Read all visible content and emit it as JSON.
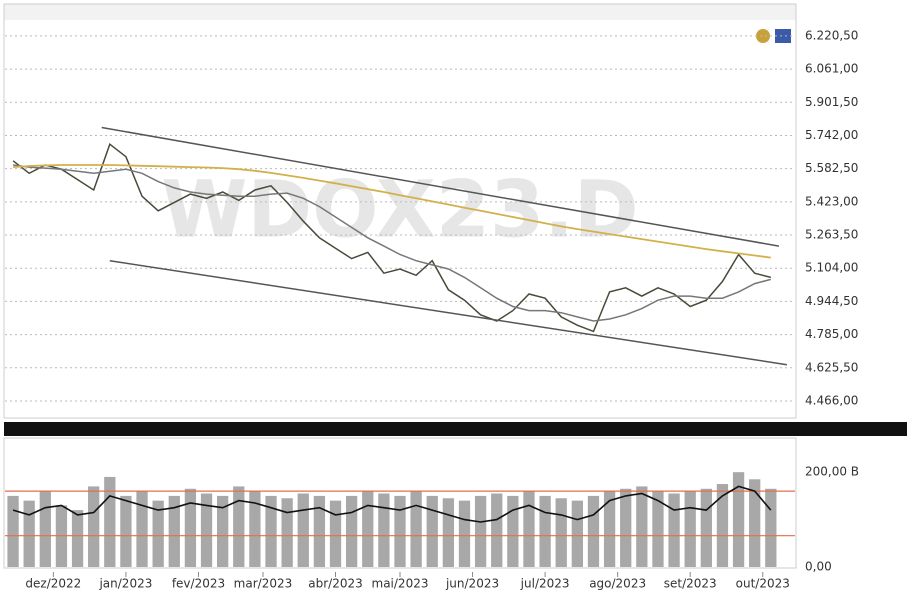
{
  "chart_data": [
    {
      "type": "line",
      "watermark": "WDOX23.D",
      "x": [
        0,
        1,
        2,
        3,
        4,
        5,
        6,
        7,
        8,
        9,
        10,
        11,
        12,
        13,
        14,
        15,
        16,
        17,
        18,
        19,
        20,
        21,
        22,
        23,
        24,
        25,
        26,
        27,
        28,
        29,
        30,
        31,
        32,
        33,
        34,
        35,
        36,
        37,
        38,
        39,
        40,
        41,
        42,
        43,
        44,
        45,
        46,
        47
      ],
      "xlim": [
        -0.5,
        48.5
      ],
      "ylim": [
        4384,
        6369
      ],
      "yticks": [
        {
          "value": 6220.5,
          "label": "6.220,50"
        },
        {
          "value": 6061,
          "label": "6.061,00"
        },
        {
          "value": 5901.5,
          "label": "5.901,50"
        },
        {
          "value": 5742,
          "label": "5.742,00"
        },
        {
          "value": 5582.5,
          "label": "5.582,50"
        },
        {
          "value": 5423,
          "label": "5.423,00"
        },
        {
          "value": 5263.5,
          "label": "5.263,50"
        },
        {
          "value": 5104,
          "label": "5.104,00"
        },
        {
          "value": 4944.5,
          "label": "4.944,50"
        },
        {
          "value": 4785,
          "label": "4.785,00"
        },
        {
          "value": 4625.5,
          "label": "4.625,50"
        },
        {
          "value": 4466,
          "label": "4.466,00"
        }
      ],
      "grid": true,
      "series": [
        {
          "color": "#4a4a3a",
          "values": [
            5620,
            5560,
            5600,
            5580,
            5530,
            5480,
            5700,
            5640,
            5450,
            5380,
            5420,
            5460,
            5440,
            5470,
            5430,
            5480,
            5500,
            5420,
            5330,
            5250,
            5200,
            5150,
            5180,
            5080,
            5100,
            5070,
            5140,
            5000,
            4950,
            4880,
            4850,
            4900,
            4980,
            4960,
            4870,
            4830,
            4800,
            4990,
            5010,
            4970,
            5010,
            4980,
            4920,
            4950,
            5040,
            5170,
            5080,
            5060
          ]
        },
        {
          "color": "#777777",
          "values": [
            5600,
            5590,
            5585,
            5580,
            5570,
            5560,
            5570,
            5580,
            5560,
            5520,
            5490,
            5470,
            5460,
            5455,
            5450,
            5450,
            5460,
            5465,
            5440,
            5400,
            5350,
            5300,
            5250,
            5210,
            5170,
            5140,
            5120,
            5100,
            5060,
            5010,
            4960,
            4920,
            4900,
            4900,
            4890,
            4870,
            4850,
            4860,
            4880,
            4910,
            4950,
            4970,
            4970,
            4960,
            4960,
            4990,
            5030,
            5050
          ]
        },
        {
          "color": "#d4b04a",
          "values": [
            5590,
            5595,
            5598,
            5600,
            5600,
            5600,
            5600,
            5598,
            5596,
            5594,
            5592,
            5590,
            5588,
            5585,
            5580,
            5572,
            5562,
            5550,
            5538,
            5525,
            5512,
            5498,
            5484,
            5470,
            5455,
            5440,
            5425,
            5410,
            5395,
            5380,
            5365,
            5350,
            5335,
            5320,
            5305,
            5292,
            5280,
            5268,
            5256,
            5244,
            5232,
            5220,
            5208,
            5196,
            5185,
            5175,
            5165,
            5155
          ]
        },
        {
          "color": "#555555",
          "x": [
            5.5,
            47.5
          ],
          "values": [
            5780,
            5210
          ]
        },
        {
          "color": "#555555",
          "x": [
            6,
            48
          ],
          "values": [
            5140,
            4640
          ]
        }
      ]
    },
    {
      "type": "bar",
      "x": [
        0,
        1,
        2,
        3,
        4,
        5,
        6,
        7,
        8,
        9,
        10,
        11,
        12,
        13,
        14,
        15,
        16,
        17,
        18,
        19,
        20,
        21,
        22,
        23,
        24,
        25,
        26,
        27,
        28,
        29,
        30,
        31,
        32,
        33,
        34,
        35,
        36,
        37,
        38,
        39,
        40,
        41,
        42,
        43,
        44,
        45,
        46,
        47
      ],
      "xlim": [
        -0.5,
        48.5
      ],
      "xticks": [
        {
          "value": 2.5,
          "label": "dez/2022"
        },
        {
          "value": 7,
          "label": "jan/2023"
        },
        {
          "value": 11.5,
          "label": "fev/2023"
        },
        {
          "value": 15.5,
          "label": "mar/2023"
        },
        {
          "value": 20,
          "label": "abr/2023"
        },
        {
          "value": 24,
          "label": "mai/2023"
        },
        {
          "value": 28.5,
          "label": "jun/2023"
        },
        {
          "value": 33,
          "label": "jul/2023"
        },
        {
          "value": 37.5,
          "label": "ago/2023"
        },
        {
          "value": 42,
          "label": "set/2023"
        },
        {
          "value": 46.5,
          "label": "out/2023"
        }
      ],
      "ylim": [
        0,
        270
      ],
      "yticks": [
        {
          "value": 200,
          "label": "200,00 B"
        },
        {
          "value": 0,
          "label": "0,00"
        }
      ],
      "color": "#a8a8a8",
      "values": [
        150,
        140,
        160,
        130,
        120,
        170,
        190,
        150,
        160,
        140,
        150,
        165,
        155,
        150,
        170,
        160,
        150,
        145,
        155,
        150,
        140,
        150,
        160,
        155,
        150,
        160,
        150,
        145,
        140,
        150,
        155,
        150,
        160,
        150,
        145,
        140,
        150,
        160,
        165,
        170,
        160,
        155,
        160,
        165,
        175,
        200,
        185,
        165
      ],
      "average": {
        "color": "#111111",
        "values": [
          120,
          110,
          125,
          130,
          110,
          115,
          150,
          140,
          130,
          120,
          125,
          135,
          130,
          125,
          140,
          135,
          125,
          115,
          120,
          125,
          110,
          115,
          130,
          125,
          120,
          130,
          120,
          110,
          100,
          95,
          100,
          120,
          130,
          115,
          110,
          100,
          110,
          140,
          150,
          155,
          140,
          120,
          125,
          120,
          150,
          170,
          160,
          120
        ]
      },
      "hlines": {
        "color": "#e0704a",
        "values": [
          160,
          66
        ]
      }
    }
  ]
}
